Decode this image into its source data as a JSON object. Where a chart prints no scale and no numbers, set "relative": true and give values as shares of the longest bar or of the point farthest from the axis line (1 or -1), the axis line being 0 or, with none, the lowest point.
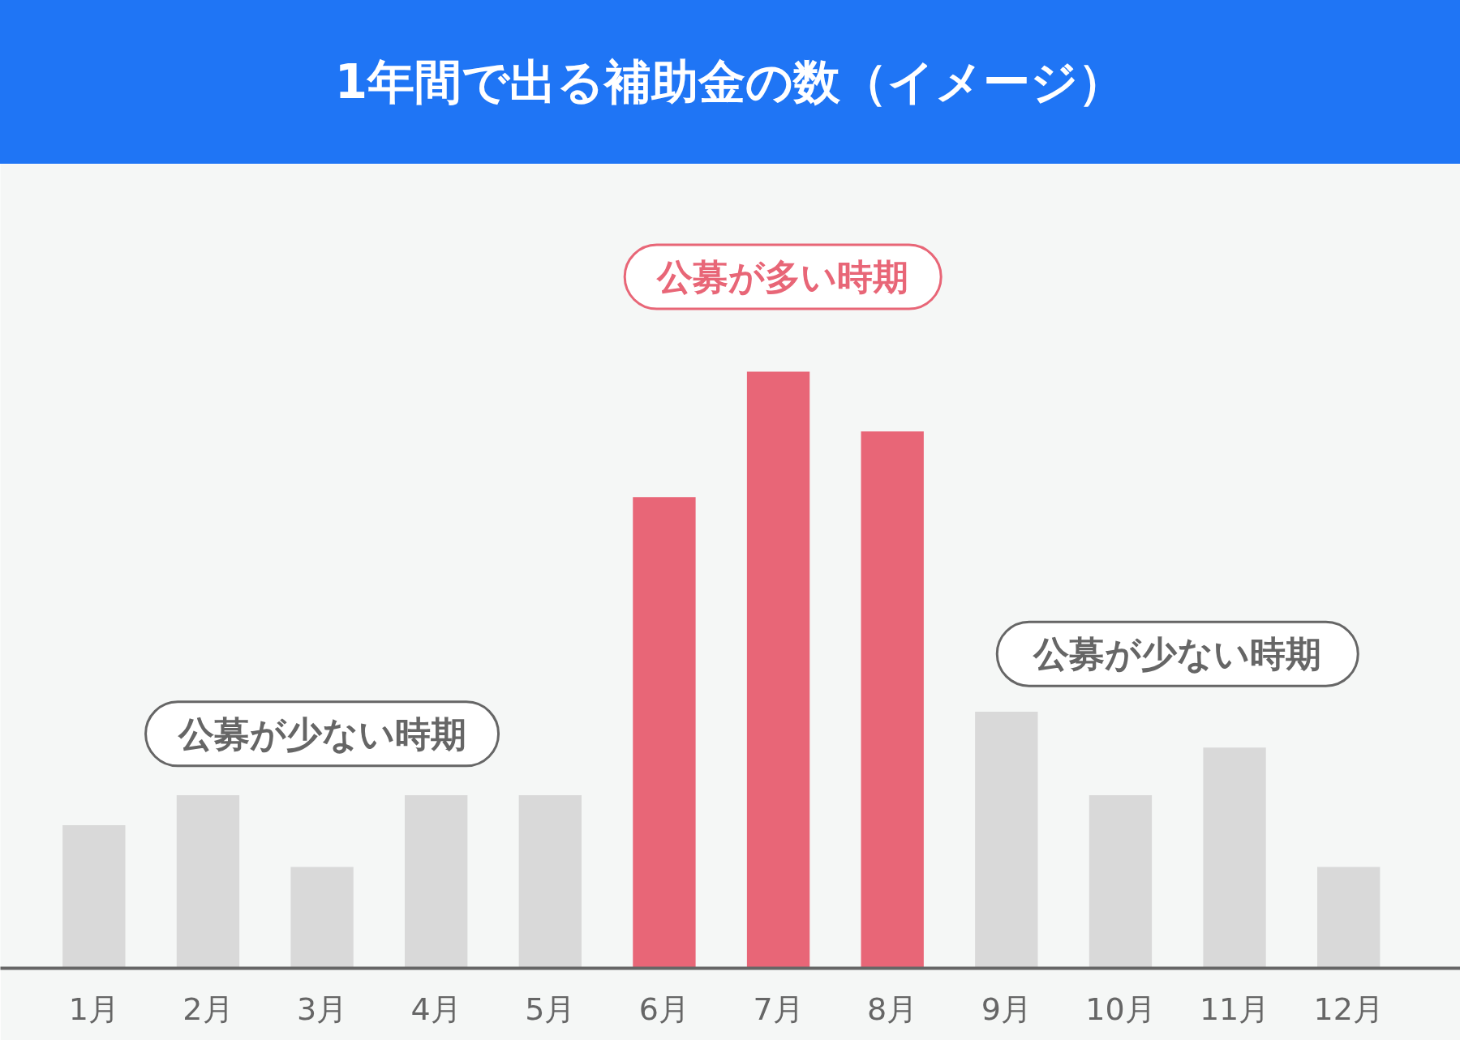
{
  "chart_data": {
    "type": "bar",
    "title": "1年間で出る補助金の数（イメージ）",
    "relative": true,
    "categories": [
      "1月",
      "2月",
      "3月",
      "4月",
      "5月",
      "6月",
      "7月",
      "8月",
      "9月",
      "10月",
      "11月",
      "12月"
    ],
    "values": [
      0.24,
      0.29,
      0.17,
      0.29,
      0.29,
      0.79,
      1.0,
      0.9,
      0.43,
      0.29,
      0.37,
      0.17
    ],
    "colors": [
      "#d9d9d9",
      "#d9d9d9",
      "#d9d9d9",
      "#d9d9d9",
      "#d9d9d9",
      "#e86677",
      "#e86677",
      "#e86677",
      "#d9d9d9",
      "#d9d9d9",
      "#d9d9d9",
      "#d9d9d9"
    ],
    "annotations": [
      "公募が少ない時期",
      "公募が多い時期",
      "公募が少ない時期"
    ],
    "grid": false
  }
}
